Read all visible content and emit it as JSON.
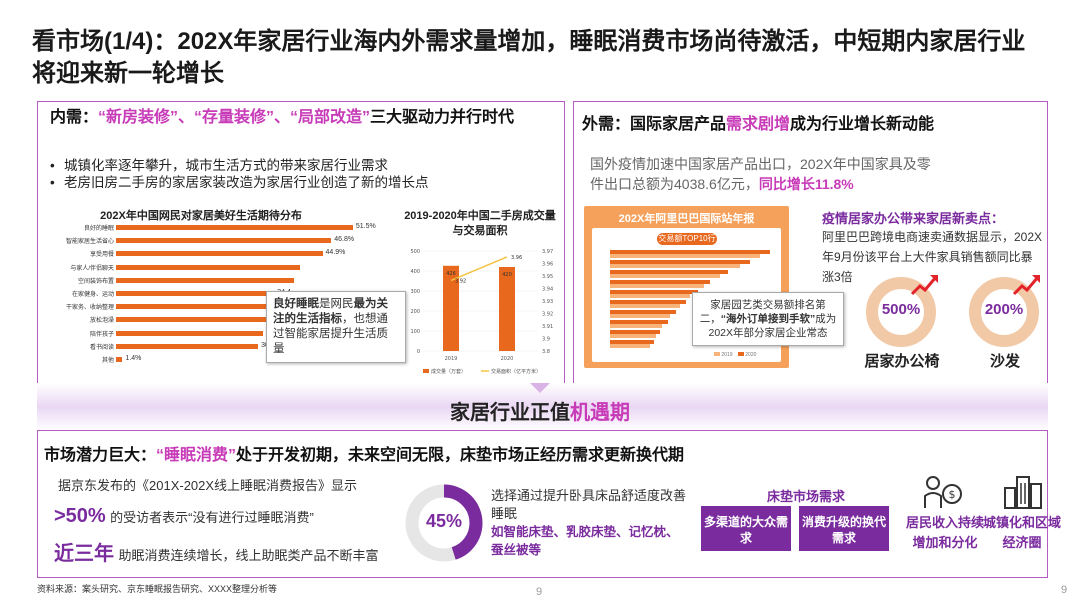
{
  "title": "看市场(1/4)：202X年家居行业海内外需求量增加，睡眠消费市场尚待激活，中短期内家居行业将迎来新一轮增长",
  "left": {
    "heading_prefix": "内需：",
    "heading_hl": "“新房装修”、“存量装修”、“局部改造”",
    "heading_suffix": "三大驱动力并行时代",
    "bullets": [
      "城镇化率逐年攀升，城市生活方式的带来家居行业需求",
      "老房旧房二手房的家居家装改造为家居行业创造了新的增长点"
    ],
    "chart1_title": "202X年中国网民对家居美好生活期待分布",
    "chart1": {
      "type": "bar",
      "categories": [
        "良好的睡眠",
        "智能家居生活省心",
        "享受用餐",
        "与家人/伴侣聊天",
        "空间装饰布置",
        "在家健身、运动",
        "干家务、收纳整理",
        "放松泡澡",
        "陪伴孩子",
        "看书阅读",
        "其他"
      ],
      "values": [
        51.5,
        46.8,
        44.9,
        40.1,
        38.6,
        34.4,
        33.9,
        33.3,
        32.0,
        30.9,
        1.4
      ],
      "labels": [
        "51.5%",
        "46.8%",
        "44.9%",
        "",
        "",
        "34.4",
        "33.9",
        "33.3",
        "32.0%",
        "30.9%",
        "1.4%"
      ]
    },
    "callout1_prefix": "良好睡眠",
    "callout1_mid": "是网民",
    "callout1_bold": "最为关注的生活指标",
    "callout1_suffix": "，也想通过智能家居提升生活质量",
    "chart2_title": "2019-2020年中国二手房成交量与交易面积",
    "chart2": {
      "type": "bar",
      "categories": [
        "2019",
        "2020"
      ],
      "bars": [
        426,
        420
      ],
      "bar_labels": [
        "426",
        "420"
      ],
      "line": [
        3.92,
        3.96
      ],
      "line_labels": [
        "3.92",
        "3.96"
      ],
      "left_ticks": [
        "500",
        "400",
        "300",
        "200",
        "100",
        "0"
      ],
      "right_ticks": [
        "3.97",
        "3.96",
        "3.95",
        "3.94",
        "3.93",
        "3.92",
        "3.91",
        "3.9",
        "3.8"
      ],
      "legend": [
        "成交量（万套）",
        "交易面积（亿平方米）"
      ]
    }
  },
  "right": {
    "heading_prefix": "外需：国际家居产品",
    "heading_hl": "需求剧增",
    "heading_suffix": "成为行业增长新动能",
    "text1": "国外疫情加速中国家居产品出口，202X年中国家具及零件出口总额为4038.6亿元，",
    "text1_hl": "同比增长11.8%",
    "report_title": "202X年阿里巴巴国际站年报",
    "report_sub": "交易额TOP10行业",
    "report_legend": [
      "2019",
      "2020"
    ],
    "callout2_a": "家居园艺类交易额排名第二，",
    "callout2_b": "“海外订单接到手软”",
    "callout2_c": "成为202X年部分家居企业常态",
    "sub_heading": "疫情居家办公带来家居新卖点：",
    "sub_text": "阿里巴巴跨境电商速卖通数据显示，202X年9月份该平台上大件家具销售额同比暴涨3倍",
    "ring1_val": "500%",
    "ring1_label": "居家办公椅",
    "ring2_val": "200%",
    "ring2_label": "沙发"
  },
  "band": {
    "text_a": "家居行业正值",
    "text_b": "机遇期"
  },
  "bottom": {
    "heading_prefix": "市场潜力巨大：",
    "heading_hl": "“睡眠消费”",
    "heading_suffix": "处于开发初期，未来空间无限，床垫市场正经历需求更新换代期",
    "source_text": "据京东发布的《201X-202X线上睡眠消费报告》显示",
    "stat1_big": ">50%",
    "stat1_text": "的受访者表示“没有进行过睡眠消费”",
    "stat2_big": "近三年",
    "stat2_text": "助眠消费连续增长，线上助眠类产品不断丰富",
    "donut_val": "45%",
    "donut_fraction": 0.45,
    "donut_text_a": "选择通过提升卧具床品舒适度改善睡眠",
    "donut_text_b": "如智能床垫、乳胶床垫、记忆枕、蚕丝被等",
    "mattress_title": "床垫市场需求",
    "tag1": "多渠道的大众需求",
    "tag2": "消费升级的换代需求",
    "drv1": "居民收入持续增加和分化",
    "drv2": "城镇化和区域经济圈"
  },
  "footer": {
    "source": "资料来源：案头研究、京东睡眠报告研究、XXXX整理分析等",
    "page_center": "9",
    "page_right": "9"
  },
  "colors": {
    "accent": "#c83bb8",
    "purple": "#7a2b9e",
    "orange": "#e8681e",
    "border": "#b45cc4"
  }
}
